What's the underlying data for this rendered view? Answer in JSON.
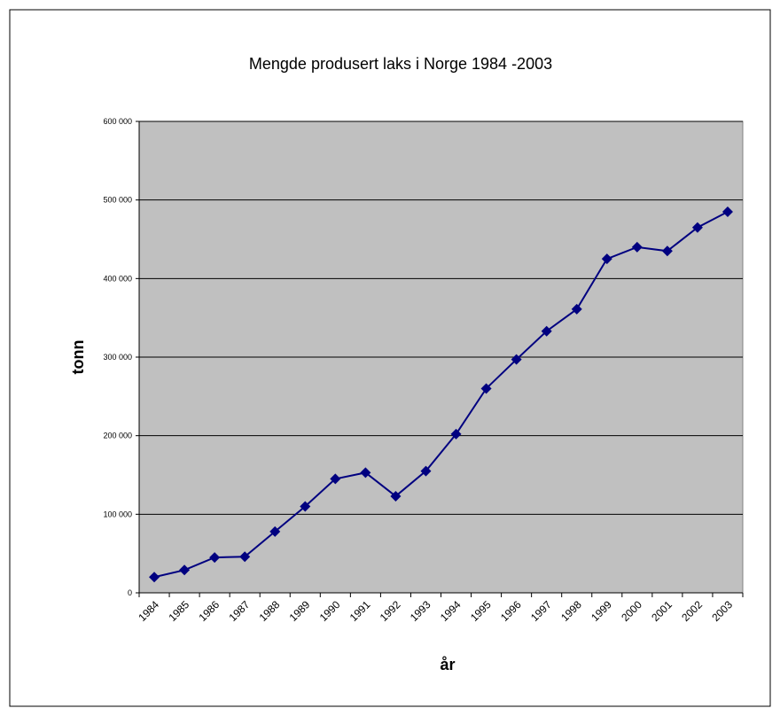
{
  "chart_data": {
    "type": "line",
    "title": "Mengde produsert laks i Norge 1984 -2003",
    "x_label": "år",
    "y_label": "tonn",
    "categories": [
      "1984",
      "1985",
      "1986",
      "1987",
      "1988",
      "1989",
      "1990",
      "1991",
      "1992",
      "1993",
      "1994",
      "1995",
      "1996",
      "1997",
      "1998",
      "1999",
      "2000",
      "2001",
      "2002",
      "2003"
    ],
    "series": [
      {
        "name": "laks",
        "color": "#000080",
        "values": [
          20000,
          29000,
          45000,
          46000,
          78000,
          110000,
          145000,
          153000,
          123000,
          155000,
          202000,
          260000,
          297000,
          333000,
          361000,
          425000,
          440000,
          435000,
          465000,
          485000
        ]
      }
    ],
    "ylim": [
      0,
      600000
    ],
    "yticks": [
      0,
      {
        "value": 100000,
        "label": "100 000"
      },
      {
        "value": 200000,
        "label": "200 000"
      },
      {
        "value": 300000,
        "label": "300 000"
      },
      {
        "value": 400000,
        "label": "400 000"
      },
      {
        "value": 500000,
        "label": "500 000"
      },
      {
        "value": 600000,
        "label": "600 000"
      }
    ],
    "grid": true,
    "legend": false,
    "plot_background": "#c0c0c0"
  }
}
